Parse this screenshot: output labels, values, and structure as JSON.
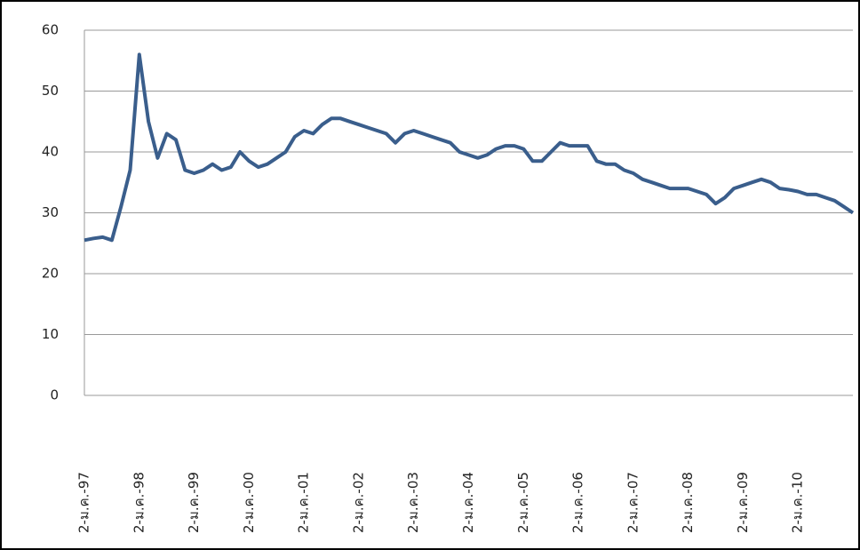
{
  "chart_data": {
    "type": "line",
    "categories": [
      "2-ม.ค.-97",
      null,
      null,
      null,
      null,
      null,
      "2-ม.ค.-98",
      null,
      null,
      null,
      null,
      null,
      "2-ม.ค.-99",
      null,
      null,
      null,
      null,
      null,
      "2-ม.ค.-00",
      null,
      null,
      null,
      null,
      null,
      "2-ม.ค.-01",
      null,
      null,
      null,
      null,
      null,
      "2-ม.ค.-02",
      null,
      null,
      null,
      null,
      null,
      "2-ม.ค.-03",
      null,
      null,
      null,
      null,
      null,
      "2-ม.ค.-04",
      null,
      null,
      null,
      null,
      null,
      "2-ม.ค.-05",
      null,
      null,
      null,
      null,
      null,
      "2-ม.ค.-06",
      null,
      null,
      null,
      null,
      null,
      "2-ม.ค.-07",
      null,
      null,
      null,
      null,
      null,
      "2-ม.ค.-08",
      null,
      null,
      null,
      null,
      null,
      "2-ม.ค.-09",
      null,
      null,
      null,
      null,
      null,
      "2-ม.ค.-10",
      null,
      null,
      null,
      null,
      null,
      null
    ],
    "series": [
      {
        "color": "#3a5e8c",
        "values": [
          25.5,
          25.8,
          26,
          25.5,
          31,
          37,
          56,
          45,
          39,
          43,
          42,
          37,
          36.5,
          37,
          38,
          37,
          37.5,
          40,
          38.5,
          37.5,
          38,
          39,
          40,
          42.5,
          43.5,
          43,
          44.5,
          45.5,
          45.5,
          45,
          44.5,
          44,
          43.5,
          43,
          41.5,
          43,
          43.5,
          43,
          42.5,
          42,
          41.5,
          40,
          39.5,
          39,
          39.5,
          40.5,
          41,
          41,
          40.5,
          38.5,
          38.5,
          40,
          41.5,
          41,
          41,
          41,
          38.5,
          38,
          38,
          37,
          36.5,
          35.5,
          35,
          34.5,
          34,
          34,
          34,
          33.5,
          33,
          31.5,
          32.5,
          34,
          34.5,
          35,
          35.5,
          35,
          34,
          33.8,
          33.5,
          33,
          33,
          32.5,
          32,
          31,
          30
        ]
      }
    ],
    "ylim": [
      0,
      60
    ],
    "yticks": [
      0,
      10,
      20,
      30,
      40,
      50,
      60
    ],
    "grid": true
  }
}
